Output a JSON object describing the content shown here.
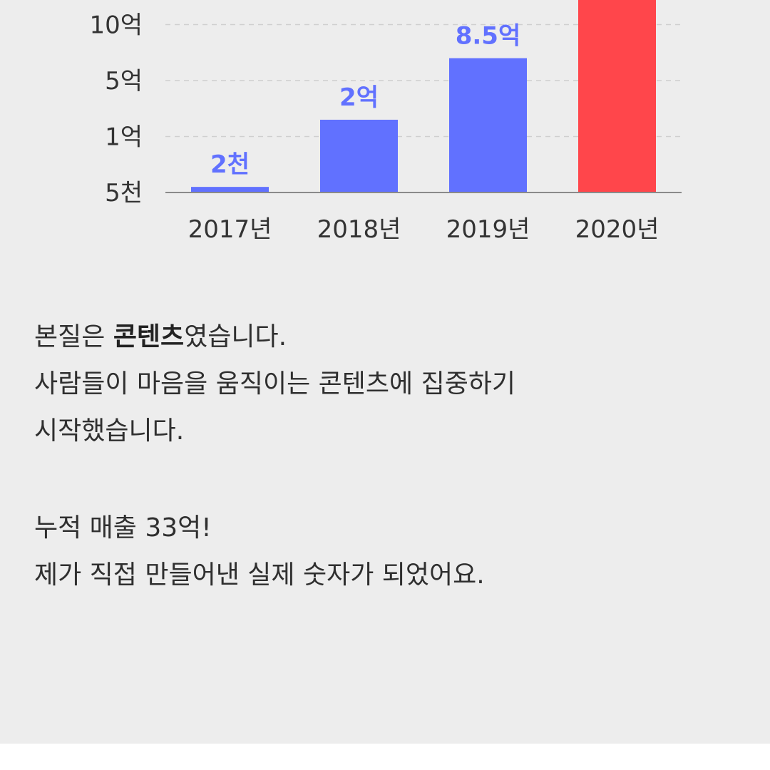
{
  "chart_data": {
    "type": "bar",
    "categories": [
      "2017년",
      "2018년",
      "2019년",
      "2020년"
    ],
    "y_ticks": [
      "5천",
      "1억",
      "5억",
      "10억"
    ],
    "bar_levels": [
      0.1,
      1.3,
      2.4,
      3.5
    ],
    "data_labels": [
      "2천",
      "2억",
      "8.5억",
      ""
    ],
    "colors": {
      "default_bar": "#6171ff",
      "highlight_bar": "#ff464b",
      "label": "#6171ff",
      "grid": "#cfcfcf",
      "axis": "#8a8a8a"
    },
    "highlight_index": 3,
    "grid": true
  },
  "text": {
    "line1_prefix": "본질은 ",
    "line1_strong": "콘텐츠",
    "line1_suffix": "였습니다.",
    "line2": "사람들이 마음을 움직이는 콘텐츠에 집중하기",
    "line3": "시작했습니다.",
    "line4": "누적 매출 33억!",
    "line5": "제가 직접 만들어낸 실제 숫자가 되었어요."
  }
}
